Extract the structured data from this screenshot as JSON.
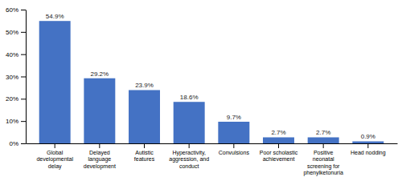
{
  "chart_data": {
    "type": "bar",
    "categories": [
      "Global\ndevelopmental\ndelay",
      "Delayed\nlanguage\ndevelopment",
      "Autistic\nfeatures",
      "Hyperactivity,\naggression, and\nconduct",
      "Convulsions",
      "Poor scholastic\nachievement",
      "Positive\nneonatal\nscreening for\nphenylketonuria",
      "Head nodding"
    ],
    "values": [
      54.9,
      29.2,
      23.9,
      18.6,
      9.7,
      2.7,
      2.7,
      0.9
    ],
    "value_labels": [
      "54.9%",
      "29.2%",
      "23.9%",
      "18.6%",
      "9.7%",
      "2.7%",
      "2.7%",
      "0.9%"
    ],
    "data_labels": true,
    "color": "#4472C4",
    "ylim": [
      0,
      60
    ],
    "yticks": [
      {
        "value": 0,
        "label": "0%"
      },
      {
        "value": 10,
        "label": "10%"
      },
      {
        "value": 20,
        "label": "20%"
      },
      {
        "value": 30,
        "label": "30%"
      },
      {
        "value": 40,
        "label": "40%"
      },
      {
        "value": 50,
        "label": "50%"
      },
      {
        "value": 60,
        "label": "60%"
      }
    ],
    "grid": false
  }
}
